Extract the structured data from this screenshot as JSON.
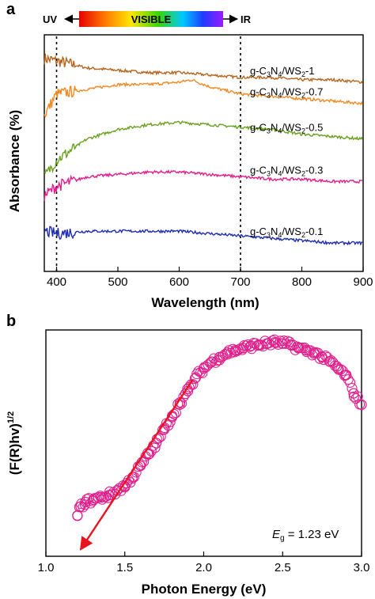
{
  "figure": {
    "panel_a_letter": "a",
    "panel_b_letter": "b",
    "spectrum_bar": {
      "uv_label": "UV",
      "visible_label": "VISIBLE",
      "ir_label": "IR"
    },
    "eg_symbol": "E",
    "eg_subscript": "g",
    "eg_value": " = 1.23 eV"
  },
  "chart_data": [
    {
      "type": "line",
      "xlabel": "Wavelength (nm)",
      "ylabel": "Absorbance (%)",
      "xlim": [
        380,
        900
      ],
      "xticks": [
        400,
        500,
        600,
        700,
        800,
        900
      ],
      "y_tick_labels": false,
      "reference_lines_x": [
        400,
        700
      ],
      "series": [
        {
          "base": "g-C",
          "sub1": "3",
          "mid": "N",
          "sub2": "4",
          "slash": "/WS",
          "sub3": "2",
          "suffix": "-1",
          "color": "#b5651d",
          "x": [
            380,
            400,
            450,
            500,
            550,
            600,
            650,
            700,
            750,
            800,
            850,
            900
          ],
          "y": [
            0.9,
            0.89,
            0.86,
            0.85,
            0.84,
            0.84,
            0.83,
            0.82,
            0.82,
            0.81,
            0.81,
            0.8
          ]
        },
        {
          "base": "g-C",
          "sub1": "3",
          "mid": "N",
          "sub2": "4",
          "slash": "/WS",
          "sub3": "2",
          "suffix": "-0.7",
          "color": "#f08a24",
          "x": [
            380,
            400,
            450,
            500,
            550,
            600,
            620,
            650,
            700,
            750,
            800,
            850,
            900
          ],
          "y": [
            0.66,
            0.75,
            0.77,
            0.79,
            0.79,
            0.8,
            0.81,
            0.78,
            0.75,
            0.74,
            0.73,
            0.72,
            0.71
          ]
        },
        {
          "base": "g-C",
          "sub1": "3",
          "mid": "N",
          "sub2": "4",
          "slash": "/WS",
          "sub3": "2",
          "suffix": "-0.5",
          "color": "#6aa121",
          "x": [
            380,
            400,
            450,
            500,
            550,
            600,
            650,
            700,
            750,
            800,
            850,
            900
          ],
          "y": [
            0.4,
            0.47,
            0.56,
            0.6,
            0.62,
            0.63,
            0.62,
            0.61,
            0.6,
            0.58,
            0.57,
            0.56
          ]
        },
        {
          "base": "g-C",
          "sub1": "3",
          "mid": "N",
          "sub2": "4",
          "slash": "/WS",
          "sub3": "2",
          "suffix": "-0.3",
          "color": "#e0208c",
          "x": [
            380,
            400,
            450,
            500,
            550,
            600,
            650,
            700,
            750,
            800,
            850,
            900
          ],
          "y": [
            0.32,
            0.36,
            0.4,
            0.41,
            0.42,
            0.42,
            0.41,
            0.4,
            0.39,
            0.39,
            0.38,
            0.38
          ]
        },
        {
          "base": "g-C",
          "sub1": "3",
          "mid": "N",
          "sub2": "4",
          "slash": "/WS",
          "sub3": "2",
          "suffix": "-0.1",
          "color": "#1f2db0",
          "x": [
            380,
            400,
            450,
            500,
            550,
            600,
            650,
            700,
            750,
            800,
            850,
            900
          ],
          "y": [
            0.17,
            0.16,
            0.17,
            0.17,
            0.17,
            0.17,
            0.16,
            0.15,
            0.14,
            0.13,
            0.12,
            0.12
          ]
        }
      ]
    },
    {
      "type": "scatter",
      "xlabel": "Photon Energy (eV)",
      "ylabel_base": "(F(R)hv)",
      "ylabel_sup": "1/2",
      "xlim": [
        1.0,
        3.0
      ],
      "xticks": [
        "1.0",
        "1.5",
        "2.0",
        "2.5",
        "3.0"
      ],
      "y_tick_labels": false,
      "marker": "open-circle",
      "color": "#e0208c",
      "x": [
        1.2,
        1.22,
        1.25,
        1.3,
        1.35,
        1.4,
        1.45,
        1.5,
        1.55,
        1.6,
        1.65,
        1.7,
        1.75,
        1.8,
        1.85,
        1.9,
        1.95,
        2.0,
        2.05,
        2.1,
        2.15,
        2.2,
        2.25,
        2.3,
        2.35,
        2.4,
        2.45,
        2.5,
        2.55,
        2.6,
        2.65,
        2.7,
        2.75,
        2.8,
        2.85,
        2.9,
        2.95,
        3.0
      ],
      "y": [
        0.18,
        0.22,
        0.24,
        0.25,
        0.26,
        0.27,
        0.29,
        0.31,
        0.35,
        0.4,
        0.45,
        0.5,
        0.56,
        0.62,
        0.68,
        0.73,
        0.79,
        0.83,
        0.86,
        0.88,
        0.9,
        0.91,
        0.92,
        0.93,
        0.935,
        0.94,
        0.945,
        0.94,
        0.935,
        0.92,
        0.91,
        0.9,
        0.88,
        0.86,
        0.83,
        0.8,
        0.72,
        0.67
      ],
      "tangent_line": {
        "color": "#e8141e",
        "from": [
          1.93,
          0.78
        ],
        "to": [
          1.22,
          0.03
        ]
      },
      "bandgap_eV": 1.23
    }
  ]
}
